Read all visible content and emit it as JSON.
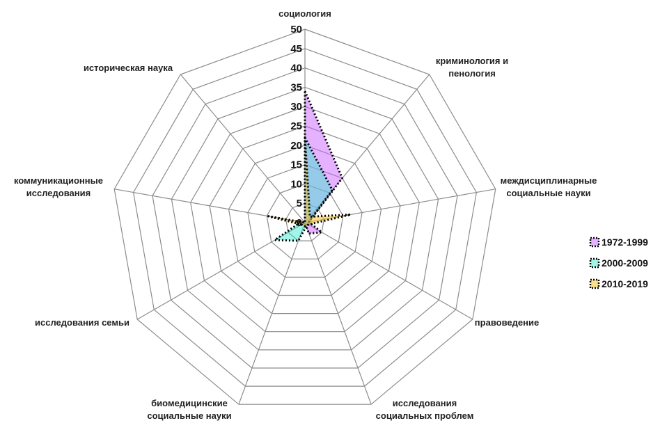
{
  "chart_data": {
    "type": "radar",
    "categories": [
      "социология",
      "криминология и пенология",
      "междисциплинарные социальные науки",
      "правоведение",
      "исследования социальных проблем",
      "биомедицинские социальные науки",
      "исследования семьи",
      "коммуникационные исследования",
      "историческая наука"
    ],
    "category_lines": [
      [
        "социология"
      ],
      [
        "криминология и",
        "пенология"
      ],
      [
        "междисциплинарные",
        "социальные науки"
      ],
      [
        "правоведение"
      ],
      [
        "исследования",
        "социальных проблем"
      ],
      [
        "биомедицинские",
        "социальные науки"
      ],
      [
        "исследования семьи"
      ],
      [
        "коммуникационные",
        "исследования"
      ],
      [
        "историческая наука"
      ]
    ],
    "r_ticks": [
      "0",
      "5",
      "10",
      "15",
      "20",
      "25",
      "30",
      "35",
      "40",
      "45",
      "50"
    ],
    "rlim": [
      0,
      50
    ],
    "series": [
      {
        "name": "1972-1999",
        "values": [
          34,
          15,
          1,
          5,
          3,
          0,
          1,
          2,
          0
        ],
        "fill": "#cc66ff",
        "fill_opacity": 0.5
      },
      {
        "name": "2000-2009",
        "values": [
          22,
          11,
          1,
          1,
          1,
          5,
          9,
          1,
          0
        ],
        "fill": "#33e6cc",
        "fill_opacity": 0.45
      },
      {
        "name": "2010-2019",
        "values": [
          22,
          2,
          12,
          1,
          1,
          1,
          1,
          10,
          0
        ],
        "fill": "#f2c230",
        "fill_opacity": 0.55
      }
    ],
    "legend_position": "right",
    "grid": true,
    "grid_color": "#8c8c8c",
    "outline_color": "#000000"
  }
}
